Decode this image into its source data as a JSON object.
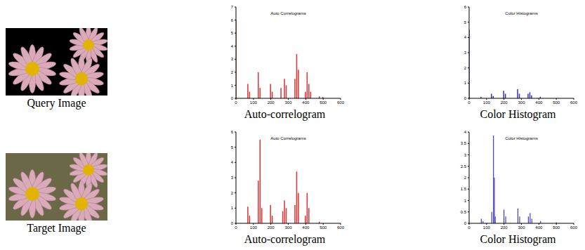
{
  "images": [
    {
      "caption": "Query Image"
    },
    {
      "caption": "Target Image"
    }
  ],
  "chart_data": [
    {
      "type": "bar",
      "title": "Auto Correlograms",
      "caption": "Auto-correlogram",
      "color": "#e03030",
      "x": [
        2,
        70,
        80,
        130,
        140,
        200,
        210,
        260,
        280,
        290,
        340,
        350,
        360,
        400,
        410,
        420,
        430,
        480,
        500
      ],
      "values": [
        6,
        1.1,
        0.5,
        2.0,
        0.8,
        1.1,
        0.5,
        0.8,
        1.5,
        1.0,
        1.5,
        3.4,
        2.2,
        0.5,
        2.0,
        1.1,
        0.5,
        0.15,
        0.1
      ],
      "xlim": [
        0,
        600
      ],
      "xticks": [
        0,
        100,
        200,
        300,
        400,
        500,
        600
      ],
      "ylim": [
        0,
        7
      ],
      "yticks": [
        0,
        1,
        2,
        3,
        4,
        5,
        6,
        7
      ]
    },
    {
      "type": "bar",
      "title": "Color Histograms",
      "caption": "Color Histogram",
      "color": "#3030c0",
      "x": [
        2,
        70,
        130,
        140,
        200,
        210,
        280,
        290,
        340,
        350,
        360,
        410
      ],
      "values": [
        4.5,
        0.1,
        0.3,
        0.15,
        0.5,
        0.3,
        0.6,
        0.3,
        0.3,
        0.4,
        0.2,
        0.1
      ],
      "xlim": [
        0,
        600
      ],
      "xticks": [
        0,
        100,
        200,
        300,
        400,
        500,
        600
      ],
      "ylim": [
        0,
        6
      ],
      "yticks": [
        0,
        1,
        2,
        3,
        4,
        5,
        6
      ]
    },
    {
      "type": "bar",
      "title": "Auto Correlograms",
      "caption": "Auto-correlogram",
      "color": "#e03030",
      "x": [
        70,
        80,
        130,
        140,
        150,
        200,
        210,
        270,
        280,
        290,
        340,
        350,
        360,
        400,
        410,
        420,
        480
      ],
      "values": [
        1.1,
        0.5,
        2.8,
        5.5,
        1.0,
        1.2,
        0.5,
        0.8,
        1.5,
        1.0,
        1.2,
        3.4,
        2.0,
        0.5,
        2.0,
        1.0,
        0.1
      ],
      "xlim": [
        0,
        600
      ],
      "xticks": [
        0,
        100,
        200,
        300,
        400,
        500,
        600
      ],
      "ylim": [
        0,
        6
      ],
      "yticks": [
        0,
        1,
        2,
        3,
        4,
        5,
        6
      ]
    },
    {
      "type": "bar",
      "title": "Color Histograms",
      "caption": "Color Histogram",
      "color": "#3030c0",
      "x": [
        70,
        80,
        130,
        140,
        145,
        150,
        200,
        210,
        280,
        290,
        340,
        350,
        360,
        410,
        500
      ],
      "values": [
        0.2,
        0.1,
        0.5,
        3.85,
        2.0,
        0.3,
        0.6,
        0.3,
        0.65,
        0.3,
        0.3,
        0.45,
        0.2,
        0.1,
        0.05
      ],
      "xlim": [
        0,
        600
      ],
      "xticks": [
        0,
        100,
        200,
        300,
        400,
        500,
        600
      ],
      "ylim": [
        0,
        4
      ],
      "yticks": [
        0,
        0.5,
        1,
        1.5,
        2,
        2.5,
        3,
        3.5,
        4
      ]
    }
  ]
}
